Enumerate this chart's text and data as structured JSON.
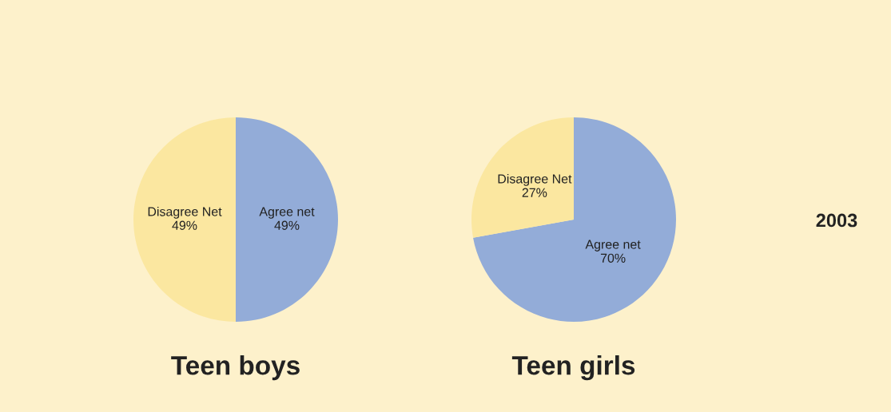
{
  "chart_data": [
    {
      "type": "pie",
      "title": "Teen boys",
      "categories": [
        "Agree net",
        "Disagree Net"
      ],
      "values": [
        49,
        49
      ],
      "value_labels": [
        "49%",
        "49%"
      ],
      "colors": [
        "#93acd8",
        "#fbe7a0"
      ]
    },
    {
      "type": "pie",
      "title": "Teen girls",
      "categories": [
        "Agree net",
        "Disagree Net"
      ],
      "values": [
        70,
        27
      ],
      "value_labels": [
        "70%",
        "27%"
      ],
      "colors": [
        "#93acd8",
        "#fbe7a0"
      ],
      "annotations": [
        "2003"
      ]
    }
  ]
}
